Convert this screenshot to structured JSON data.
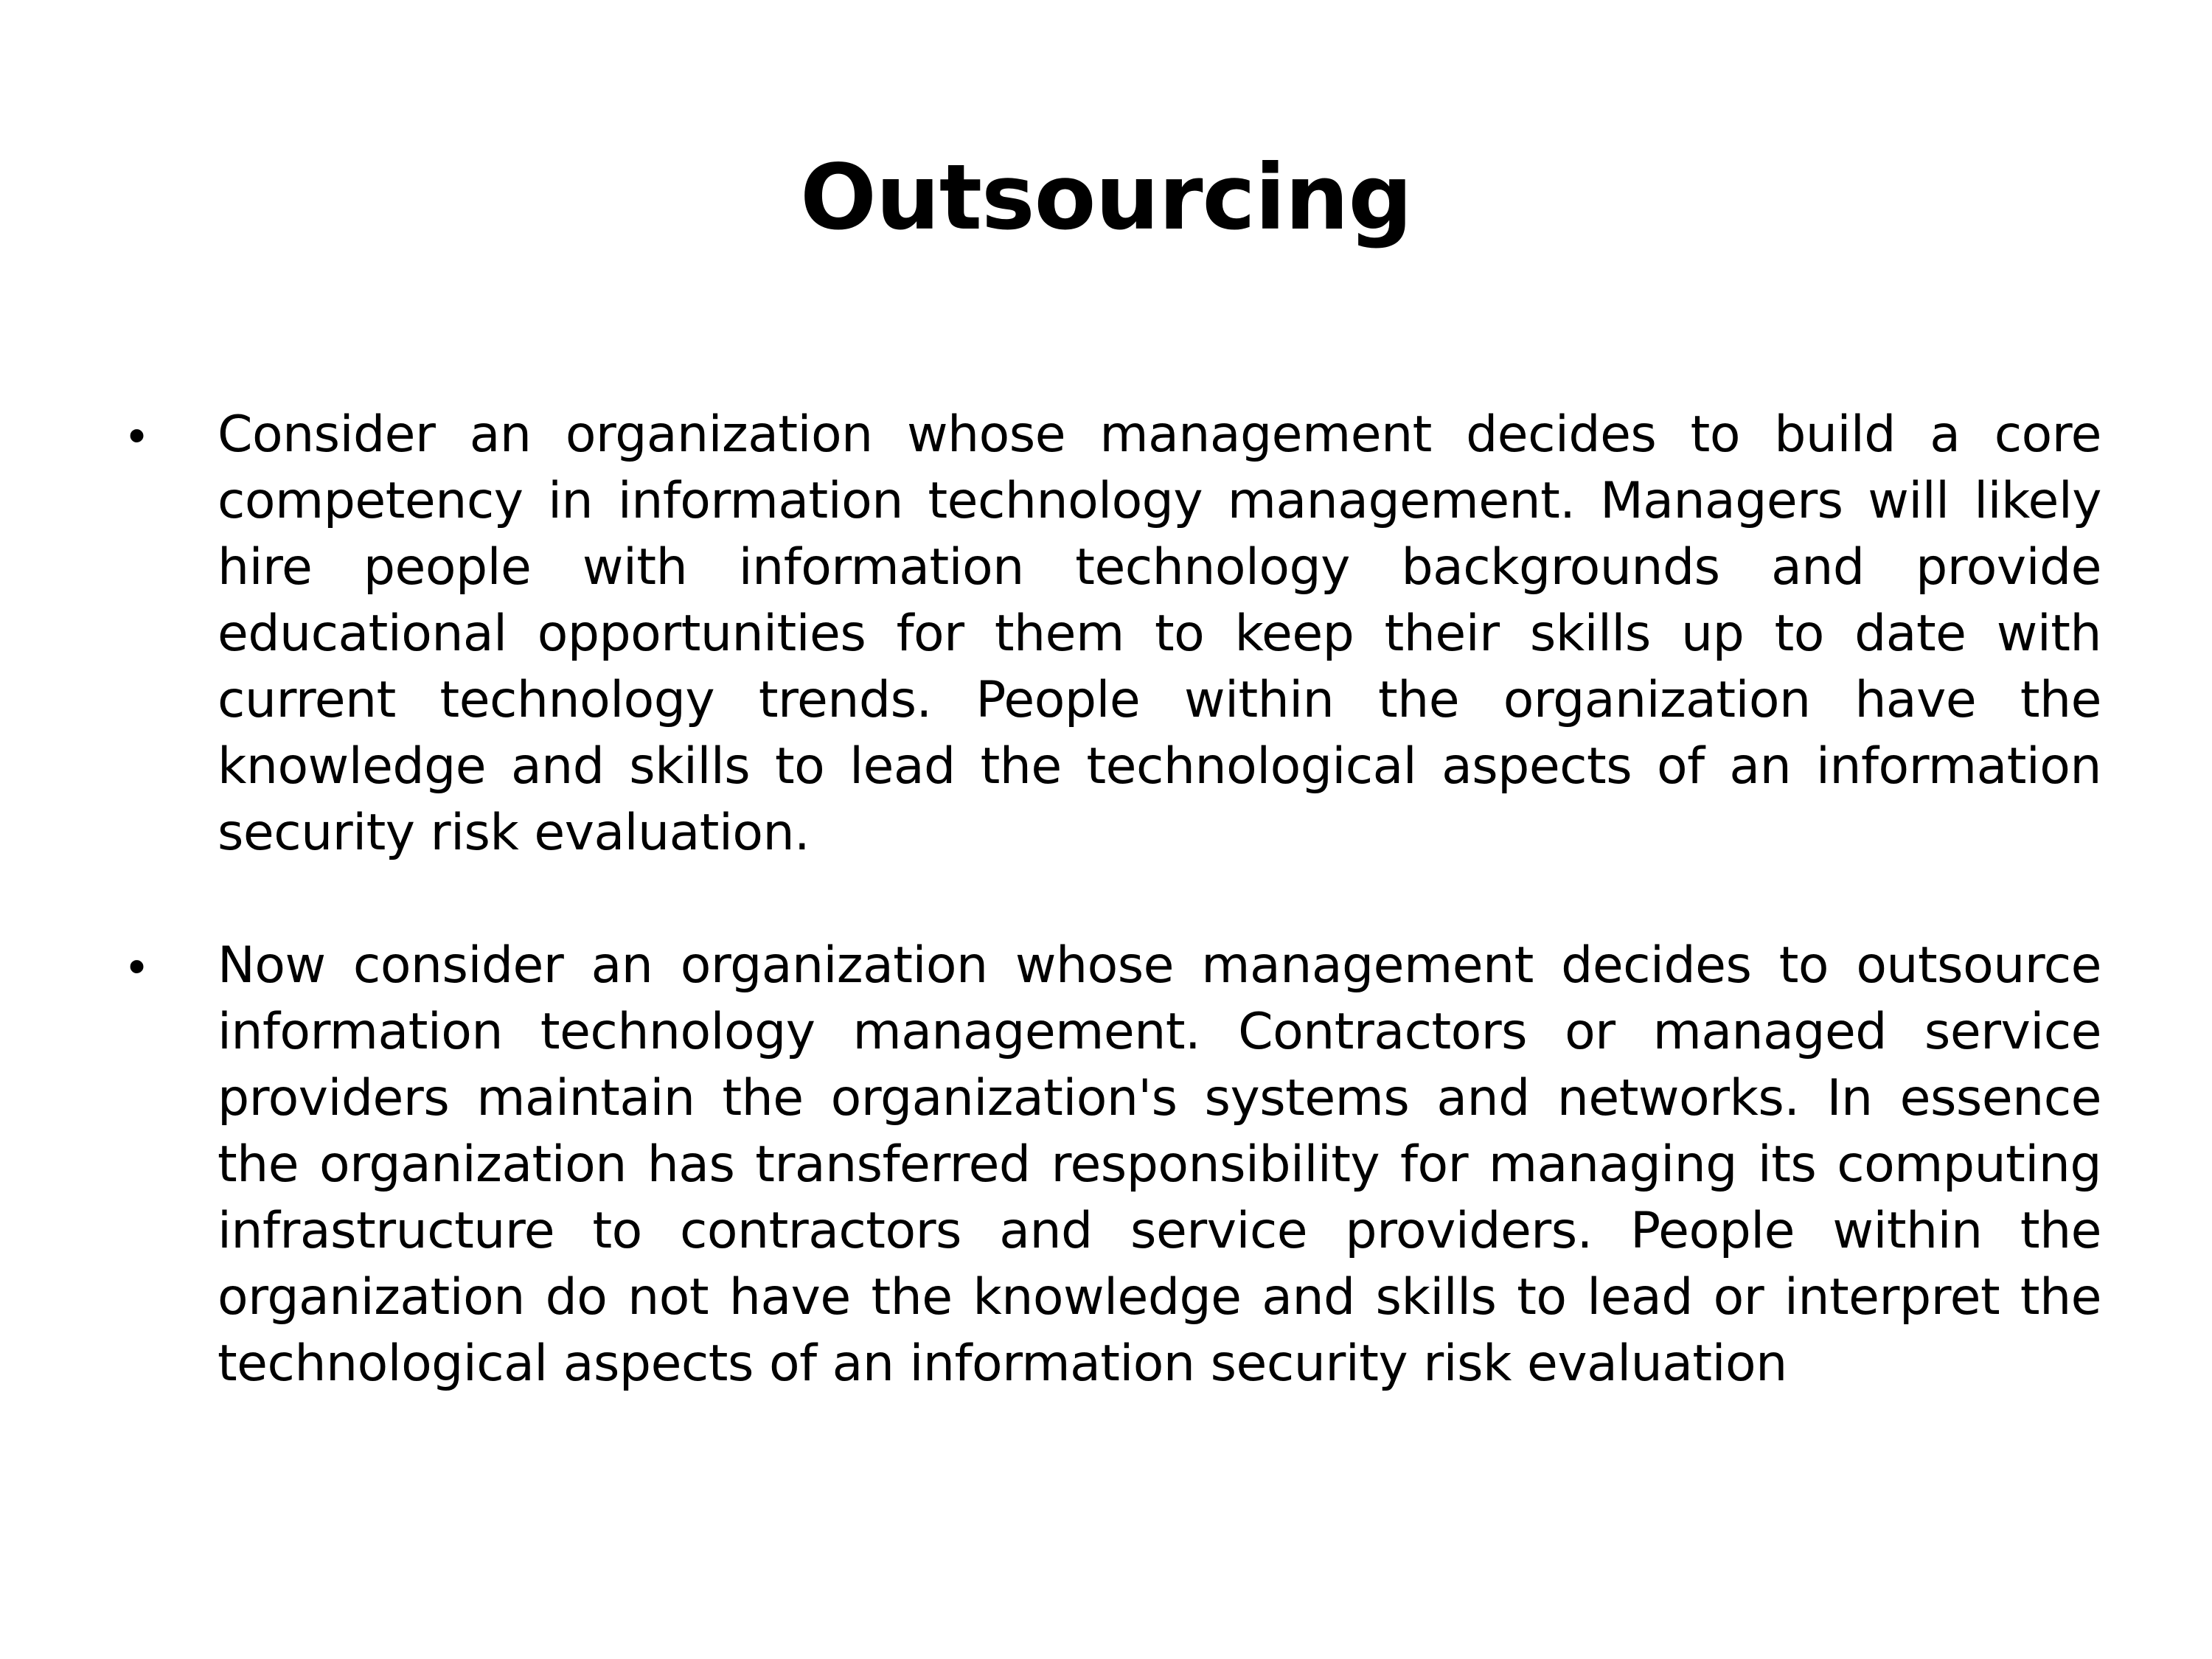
{
  "slide": {
    "title": "Outsourcing",
    "bullets": [
      {
        "marker": "•",
        "text": "Consider an organization whose management decides to build a core competency in information technology management. Managers will likely hire people with information technology backgrounds and provide educational opportunities for them to keep their skills up to date with current technology trends. People within the organization have the knowledge and skills to lead the technological aspects of an information security risk evaluation."
      },
      {
        "marker": "•",
        "text": "Now consider an organization whose management decides to outsource information technology management. Contractors or managed service providers maintain the organization's systems and networks. In essence the organization has transferred responsibility for managing its computing infrastructure to contractors and service providers. People within the organization do not have the knowledge and skills to lead or interpret the technological aspects of an information security risk evaluation"
      }
    ]
  }
}
